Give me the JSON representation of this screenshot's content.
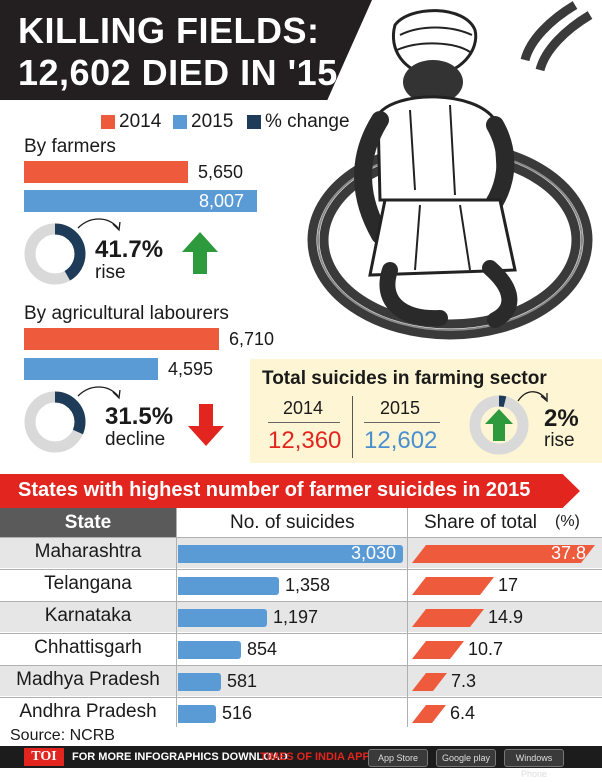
{
  "title": {
    "line1": "KILLING FIELDS:",
    "line2": "12,602 DIED IN '15"
  },
  "colors": {
    "y2014": "#ee5a3c",
    "y2015": "#5b9bd5",
    "pct": "#1f3b5a",
    "up": "#2e9a3e",
    "down": "#e2251f",
    "red_text": "#e2251f",
    "blue_text": "#4a8fd0"
  },
  "legend": [
    {
      "label": "2014",
      "color": "#ee5a3c"
    },
    {
      "label": "2015",
      "color": "#5b9bd5"
    },
    {
      "label": "% change",
      "color": "#1f3b5a"
    }
  ],
  "farmers": {
    "label": "By farmers",
    "v2014": "5,650",
    "v2015": "8,007",
    "pct": "41.7%",
    "word": "rise",
    "direction": "up",
    "arrow_icon": "up-arrow-icon",
    "ring_fraction": 0.417
  },
  "labourers": {
    "label": "By agricultural labourers",
    "v2014": "6,710",
    "v2015": "4,595",
    "pct": "31.5%",
    "word": "decline",
    "direction": "down",
    "arrow_icon": "down-arrow-icon",
    "ring_fraction": 0.315
  },
  "total": {
    "title": "Total suicides in farming sector",
    "y1": "2014",
    "v1": "12,360",
    "y2": "2015",
    "v2": "12,602",
    "pct": "2%",
    "word": "rise",
    "arrow_icon": "up-arrow-icon",
    "ring_fraction": 0.02
  },
  "states": {
    "banner": "States with highest number of farmer suicides in 2015",
    "headers": {
      "state": "State",
      "suicides": "No. of suicides",
      "share": "Share of total",
      "share_unit": "(%)"
    },
    "rows": [
      {
        "state": "Maharashtra",
        "suicides": "3,030",
        "share": "37.8"
      },
      {
        "state": "Telangana",
        "suicides": "1,358",
        "share": "17"
      },
      {
        "state": "Karnataka",
        "suicides": "1,197",
        "share": "14.9"
      },
      {
        "state": "Chhattisgarh",
        "suicides": "854",
        "share": "10.7"
      },
      {
        "state": "Madhya Pradesh",
        "suicides": "581",
        "share": "7.3"
      },
      {
        "state": "Andhra Pradesh",
        "suicides": "516",
        "share": "6.4"
      }
    ],
    "source": "Source: NCRB"
  },
  "footer": {
    "brand": "TOI",
    "text1": "FOR MORE INFOGRAPHICS DOWNLOAD",
    "text2": "TIMES OF INDIA APP",
    "stores": [
      "App Store",
      "Google play",
      "Windows Phone"
    ]
  },
  "chart_data": [
    {
      "type": "bar",
      "title": "By farmers",
      "categories": [
        "2014",
        "2015"
      ],
      "values": [
        5650,
        8007
      ],
      "percent_change": 41.7
    },
    {
      "type": "bar",
      "title": "By agricultural labourers",
      "categories": [
        "2014",
        "2015"
      ],
      "values": [
        6710,
        4595
      ],
      "percent_change": -31.5
    },
    {
      "type": "table",
      "title": "Total suicides in farming sector",
      "categories": [
        "2014",
        "2015"
      ],
      "values": [
        12360,
        12602
      ],
      "percent_change": 2
    },
    {
      "type": "bar",
      "title": "States with highest number of farmer suicides in 2015",
      "categories": [
        "Maharashtra",
        "Telangana",
        "Karnataka",
        "Chhattisgarh",
        "Madhya Pradesh",
        "Andhra Pradesh"
      ],
      "series": [
        {
          "name": "No. of suicides",
          "values": [
            3030,
            1358,
            1197,
            854,
            581,
            516
          ]
        },
        {
          "name": "Share of total",
          "values": [
            37.8,
            17,
            14.9,
            10.7,
            7.3,
            6.4
          ]
        }
      ]
    }
  ]
}
